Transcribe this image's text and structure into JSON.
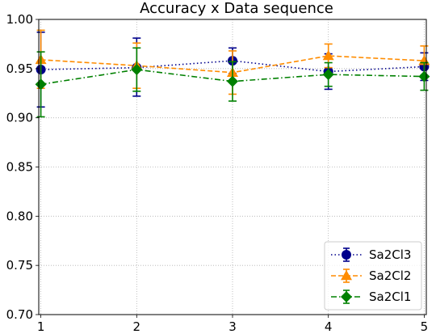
{
  "chart_data": {
    "type": "line",
    "title": "Accuracy x Data sequence",
    "xlabel": "",
    "ylabel": "",
    "x": [
      1,
      2,
      3,
      4,
      5
    ],
    "xlim": [
      0.978,
      5.022
    ],
    "ylim": [
      0.7,
      1.0
    ],
    "xticks": [
      "1",
      "2",
      "3",
      "4",
      "5"
    ],
    "yticks": [
      "0.70",
      "0.75",
      "0.80",
      "0.85",
      "0.90",
      "0.95",
      "1.00"
    ],
    "grid": true,
    "grid_style": "dotted",
    "legend_position": "lower-right",
    "series": [
      {
        "name": "Sa2Cl3",
        "color": "#00008b",
        "line_style": "dotted",
        "marker": "circle",
        "values": [
          0.949,
          0.951,
          0.958,
          0.947,
          0.952
        ],
        "err_low": [
          0.911,
          0.922,
          0.945,
          0.929,
          0.938
        ],
        "err_high": [
          0.987,
          0.981,
          0.971,
          0.965,
          0.966
        ]
      },
      {
        "name": "Sa2Cl2",
        "color": "#ff8c00",
        "line_style": "dashed",
        "marker": "triangle",
        "values": [
          0.959,
          0.953,
          0.946,
          0.963,
          0.958
        ],
        "err_low": [
          0.93,
          0.93,
          0.924,
          0.951,
          0.943
        ],
        "err_high": [
          0.989,
          0.976,
          0.968,
          0.975,
          0.973
        ]
      },
      {
        "name": "Sa2Cl1",
        "color": "#008000",
        "line_style": "dashdot",
        "marker": "diamond",
        "values": [
          0.934,
          0.949,
          0.937,
          0.944,
          0.942
        ],
        "err_low": [
          0.901,
          0.927,
          0.917,
          0.932,
          0.928
        ],
        "err_high": [
          0.967,
          0.971,
          0.957,
          0.956,
          0.956
        ]
      }
    ]
  }
}
